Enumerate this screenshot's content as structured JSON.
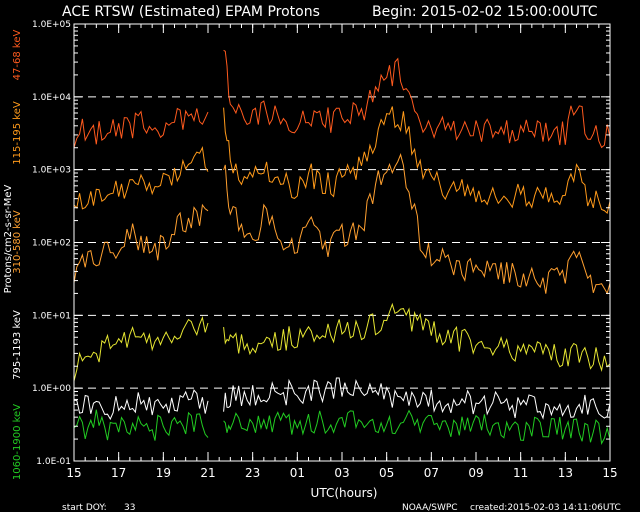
{
  "header": {
    "title": "ACE RTSW (Estimated) EPAM Protons",
    "begin": "Begin: 2015-02-02 15:00:00UTC"
  },
  "footer": {
    "start_doy": "start DOY:",
    "start_doy_value": "33",
    "credit": "NOAA/SWPC",
    "created": "created:2015-02-03 14:11:06UTC"
  },
  "colors": {
    "background": "#000000",
    "axes": "#ffffff",
    "ch_47_68": "#ff5a1e",
    "ch_115_195": "#ff9a1a",
    "ch_310_580": "#ffa030",
    "ch_795_1193": "#e6e632",
    "ch_1060_1900": "#22cc22"
  },
  "chart_data": {
    "type": "line",
    "title": "ACE RTSW (Estimated) EPAM Protons",
    "xlabel": "UTC(hours)",
    "ylabel": "Protons/cm2-s-sr-MeV",
    "y_scale": "log",
    "ylim": [
      0.1,
      100000
    ],
    "x_tick_labels": [
      "15",
      "17",
      "19",
      "21",
      "23",
      "01",
      "03",
      "05",
      "07",
      "09",
      "11",
      "13",
      "15"
    ],
    "y_tick_labels": [
      "1.0E+05",
      "1.0E+04",
      "1.0E+03",
      "1.0E+02",
      "1.0E+01",
      "1.0E+00",
      "1.0E-01"
    ],
    "x_hours_since_begin_range": [
      0,
      24
    ],
    "dashed_gridlines_at": [
      10000,
      1000,
      100,
      10,
      1
    ],
    "gap_at_hours": [
      6.1,
      6.6
    ],
    "series": [
      {
        "name": "47-68 keV",
        "color": "#ff5a1e",
        "points": [
          [
            0,
            3000
          ],
          [
            0.5,
            3500
          ],
          [
            1,
            3200
          ],
          [
            1.5,
            4000
          ],
          [
            2,
            3300
          ],
          [
            2.5,
            3800
          ],
          [
            3,
            4200
          ],
          [
            3.5,
            3600
          ],
          [
            4,
            3800
          ],
          [
            4.5,
            4600
          ],
          [
            5,
            5000
          ],
          [
            5.5,
            6000
          ],
          [
            6,
            6500
          ],
          [
            6.7,
            45000
          ],
          [
            7,
            9000
          ],
          [
            7.5,
            6000
          ],
          [
            8,
            4800
          ],
          [
            8.5,
            6800
          ],
          [
            9,
            5200
          ],
          [
            9.5,
            4200
          ],
          [
            10,
            4000
          ],
          [
            10.5,
            6000
          ],
          [
            11,
            5200
          ],
          [
            11.5,
            4700
          ],
          [
            12,
            5300
          ],
          [
            12.5,
            5800
          ],
          [
            13,
            6200
          ],
          [
            13.5,
            15000
          ],
          [
            14,
            18000
          ],
          [
            14.5,
            24000
          ],
          [
            15,
            12000
          ],
          [
            15.5,
            4500
          ],
          [
            16,
            4000
          ],
          [
            16.5,
            3800
          ],
          [
            17,
            3800
          ],
          [
            17.5,
            3600
          ],
          [
            18,
            3700
          ],
          [
            18.5,
            3500
          ],
          [
            19,
            3600
          ],
          [
            19.5,
            3400
          ],
          [
            20,
            3500
          ],
          [
            20.5,
            3300
          ],
          [
            21,
            3200
          ],
          [
            21.5,
            3300
          ],
          [
            22,
            3200
          ],
          [
            22.5,
            8000
          ],
          [
            23,
            3500
          ],
          [
            23.5,
            3000
          ],
          [
            24,
            2800
          ]
        ]
      },
      {
        "name": "115-195 keV",
        "color": "#ff9a1a",
        "points": [
          [
            0,
            300
          ],
          [
            0.5,
            400
          ],
          [
            1,
            380
          ],
          [
            1.5,
            600
          ],
          [
            2,
            450
          ],
          [
            2.5,
            800
          ],
          [
            3,
            700
          ],
          [
            3.5,
            500
          ],
          [
            4,
            600
          ],
          [
            4.5,
            900
          ],
          [
            5,
            1200
          ],
          [
            5.5,
            1800
          ],
          [
            6,
            1400
          ],
          [
            6.7,
            5000
          ],
          [
            7,
            1500
          ],
          [
            7.5,
            900
          ],
          [
            8,
            650
          ],
          [
            8.5,
            1200
          ],
          [
            9,
            800
          ],
          [
            9.5,
            600
          ],
          [
            10,
            550
          ],
          [
            10.5,
            900
          ],
          [
            11,
            700
          ],
          [
            11.5,
            600
          ],
          [
            12,
            750
          ],
          [
            12.5,
            900
          ],
          [
            13,
            1200
          ],
          [
            13.5,
            3000
          ],
          [
            14,
            4500
          ],
          [
            14.5,
            6000
          ],
          [
            15,
            3000
          ],
          [
            15.5,
            900
          ],
          [
            16,
            700
          ],
          [
            16.5,
            600
          ],
          [
            17,
            550
          ],
          [
            17.5,
            500
          ],
          [
            18,
            500
          ],
          [
            18.5,
            480
          ],
          [
            19,
            470
          ],
          [
            19.5,
            450
          ],
          [
            20,
            440
          ],
          [
            20.5,
            420
          ],
          [
            21,
            400
          ],
          [
            21.5,
            420
          ],
          [
            22,
            400
          ],
          [
            22.5,
            900
          ],
          [
            23,
            450
          ],
          [
            23.5,
            350
          ],
          [
            24,
            320
          ]
        ]
      },
      {
        "name": "310-580 keV",
        "color": "#ffa030",
        "points": [
          [
            0,
            40
          ],
          [
            0.5,
            55
          ],
          [
            1,
            60
          ],
          [
            1.5,
            120
          ],
          [
            2,
            70
          ],
          [
            2.5,
            140
          ],
          [
            3,
            110
          ],
          [
            3.5,
            80
          ],
          [
            4,
            90
          ],
          [
            4.5,
            160
          ],
          [
            5,
            200
          ],
          [
            5.5,
            250
          ],
          [
            6,
            220
          ],
          [
            6.7,
            1200
          ],
          [
            7,
            250
          ],
          [
            7.5,
            180
          ],
          [
            8,
            110
          ],
          [
            8.5,
            220
          ],
          [
            9,
            140
          ],
          [
            9.5,
            80
          ],
          [
            10,
            90
          ],
          [
            10.5,
            180
          ],
          [
            11,
            110
          ],
          [
            11.5,
            90
          ],
          [
            12,
            120
          ],
          [
            12.5,
            150
          ],
          [
            13,
            200
          ],
          [
            13.5,
            600
          ],
          [
            14,
            1000
          ],
          [
            14.5,
            1500
          ],
          [
            15,
            700
          ],
          [
            15.5,
            100
          ],
          [
            16,
            70
          ],
          [
            16.5,
            55
          ],
          [
            17,
            50
          ],
          [
            17.5,
            45
          ],
          [
            18,
            48
          ],
          [
            18.5,
            40
          ],
          [
            19,
            42
          ],
          [
            19.5,
            38
          ],
          [
            20,
            35
          ],
          [
            20.5,
            30
          ],
          [
            21,
            28
          ],
          [
            21.5,
            30
          ],
          [
            22,
            32
          ],
          [
            22.5,
            80
          ],
          [
            23,
            30
          ],
          [
            23.5,
            25
          ],
          [
            24,
            22
          ]
        ]
      },
      {
        "name": "795-1193 keV",
        "color": "#e6e632",
        "points": [
          [
            0,
            1.8
          ],
          [
            0.5,
            2.5
          ],
          [
            1,
            3
          ],
          [
            1.5,
            4
          ],
          [
            2,
            3.5
          ],
          [
            2.5,
            4.5
          ],
          [
            3,
            5
          ],
          [
            3.5,
            4
          ],
          [
            4,
            5
          ],
          [
            4.5,
            6
          ],
          [
            5,
            7
          ],
          [
            5.5,
            8
          ],
          [
            6,
            9
          ],
          [
            6.7,
            5
          ],
          [
            7,
            4.5
          ],
          [
            7.5,
            4
          ],
          [
            8,
            4
          ],
          [
            8.5,
            4.5
          ],
          [
            9,
            4.2
          ],
          [
            9.5,
            4.8
          ],
          [
            10,
            5
          ],
          [
            10.5,
            5.5
          ],
          [
            11,
            5.2
          ],
          [
            11.5,
            5.8
          ],
          [
            12,
            6
          ],
          [
            12.5,
            6.5
          ],
          [
            13,
            7
          ],
          [
            13.5,
            8
          ],
          [
            14,
            9
          ],
          [
            14.5,
            12
          ],
          [
            15,
            9
          ],
          [
            15.5,
            7
          ],
          [
            16,
            6
          ],
          [
            16.5,
            5
          ],
          [
            17,
            5
          ],
          [
            17.5,
            4.5
          ],
          [
            18,
            4.5
          ],
          [
            18.5,
            4
          ],
          [
            19,
            3.8
          ],
          [
            19.5,
            3.5
          ],
          [
            20,
            3.4
          ],
          [
            20.5,
            3.2
          ],
          [
            21,
            3
          ],
          [
            21.5,
            2.8
          ],
          [
            22,
            2.6
          ],
          [
            22.5,
            3.5
          ],
          [
            23,
            2.6
          ],
          [
            23.5,
            2.4
          ],
          [
            24,
            2.5
          ]
        ]
      },
      {
        "name": "1060-1900 keV",
        "color": "#22cc22",
        "points": [
          [
            0,
            0.25
          ],
          [
            0.5,
            0.3
          ],
          [
            1,
            0.35
          ],
          [
            1.5,
            0.28
          ],
          [
            2,
            0.3
          ],
          [
            2.5,
            0.32
          ],
          [
            3,
            0.3
          ],
          [
            3.5,
            0.28
          ],
          [
            4,
            0.3
          ],
          [
            4.5,
            0.32
          ],
          [
            5,
            0.3
          ],
          [
            5.5,
            0.35
          ],
          [
            6,
            0.3
          ],
          [
            6.7,
            0.32
          ],
          [
            7,
            0.3
          ],
          [
            7.5,
            0.35
          ],
          [
            8,
            0.33
          ],
          [
            8.5,
            0.34
          ],
          [
            9,
            0.36
          ],
          [
            9.5,
            0.33
          ],
          [
            10,
            0.35
          ],
          [
            10.5,
            0.34
          ],
          [
            11,
            0.33
          ],
          [
            11.5,
            0.35
          ],
          [
            12,
            0.36
          ],
          [
            12.5,
            0.34
          ],
          [
            13,
            0.33
          ],
          [
            13.5,
            0.35
          ],
          [
            14,
            0.36
          ],
          [
            14.5,
            0.35
          ],
          [
            15,
            0.33
          ],
          [
            15.5,
            0.32
          ],
          [
            16,
            0.3
          ],
          [
            16.5,
            0.31
          ],
          [
            17,
            0.3
          ],
          [
            17.5,
            0.29
          ],
          [
            18,
            0.3
          ],
          [
            18.5,
            0.29
          ],
          [
            19,
            0.28
          ],
          [
            19.5,
            0.28
          ],
          [
            20,
            0.27
          ],
          [
            20.5,
            0.28
          ],
          [
            21,
            0.27
          ],
          [
            21.5,
            0.28
          ],
          [
            22,
            0.26
          ],
          [
            22.5,
            0.3
          ],
          [
            23,
            0.25
          ],
          [
            23.5,
            0.26
          ],
          [
            24,
            0.25
          ]
        ]
      },
      {
        "name": "795-1193 keV (white)",
        "color": "#ffffff",
        "points": [
          [
            0,
            0.5
          ],
          [
            0.5,
            0.55
          ],
          [
            1,
            0.6
          ],
          [
            1.5,
            0.55
          ],
          [
            2,
            0.6
          ],
          [
            2.5,
            0.65
          ],
          [
            3,
            0.6
          ],
          [
            3.5,
            0.58
          ],
          [
            4,
            0.6
          ],
          [
            4.5,
            0.62
          ],
          [
            5,
            0.6
          ],
          [
            5.5,
            0.65
          ],
          [
            6,
            0.6
          ],
          [
            6.7,
            0.7
          ],
          [
            7,
            0.75
          ],
          [
            7.5,
            0.8
          ],
          [
            8,
            0.8
          ],
          [
            8.5,
            0.85
          ],
          [
            9,
            0.9
          ],
          [
            9.5,
            0.85
          ],
          [
            10,
            0.9
          ],
          [
            10.5,
            0.88
          ],
          [
            11,
            0.85
          ],
          [
            11.5,
            0.9
          ],
          [
            12,
            0.95
          ],
          [
            12.5,
            0.9
          ],
          [
            13,
            0.85
          ],
          [
            13.5,
            0.8
          ],
          [
            14,
            0.82
          ],
          [
            14.5,
            0.8
          ],
          [
            15,
            0.75
          ],
          [
            15.5,
            0.7
          ],
          [
            16,
            0.68
          ],
          [
            16.5,
            0.65
          ],
          [
            17,
            0.65
          ],
          [
            17.5,
            0.62
          ],
          [
            18,
            0.6
          ],
          [
            18.5,
            0.6
          ],
          [
            19,
            0.6
          ],
          [
            19.5,
            0.58
          ],
          [
            20,
            0.58
          ],
          [
            20.5,
            0.56
          ],
          [
            21,
            0.56
          ],
          [
            21.5,
            0.55
          ],
          [
            22,
            0.55
          ],
          [
            22.5,
            0.6
          ],
          [
            23,
            0.55
          ],
          [
            23.5,
            0.52
          ],
          [
            24,
            0.5
          ]
        ]
      }
    ],
    "channel_labels": [
      {
        "text": "47-68 keV",
        "color": "#ff5a1e"
      },
      {
        "text": "115-195 keV",
        "color": "#ff9a1a"
      },
      {
        "text": "310-580 keV",
        "color": "#ffa030"
      },
      {
        "text": "795-1193 keV",
        "color": "#ffffff"
      },
      {
        "text": "1060-1900 keV",
        "color": "#22cc22"
      }
    ]
  }
}
